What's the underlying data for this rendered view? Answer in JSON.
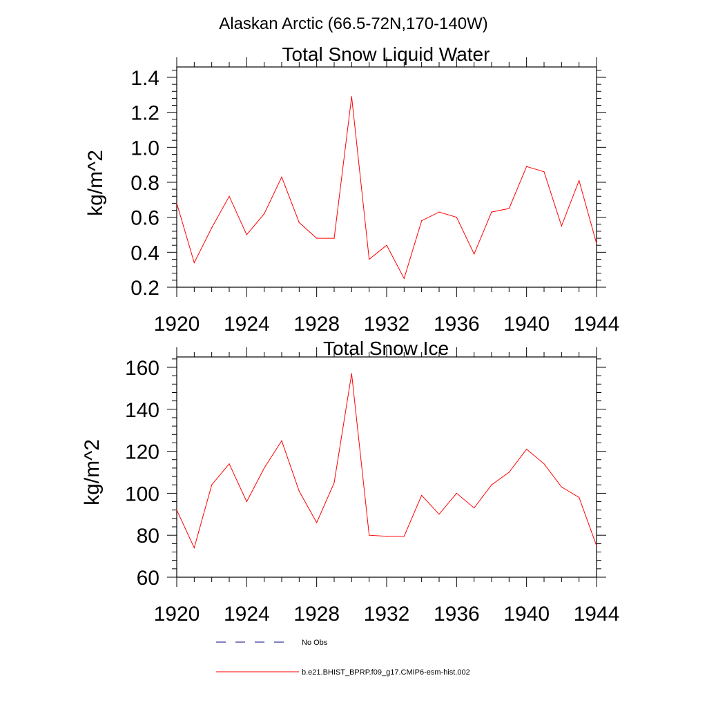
{
  "figure": {
    "title": "Alaskan Arctic (66.5-72N,170-140W)"
  },
  "chart_data": [
    {
      "type": "line",
      "title": "Total Snow Liquid Water",
      "xlabel": "",
      "ylabel": "kg/m^2",
      "xlim": [
        1920,
        1944
      ],
      "ylim": [
        0.2,
        1.4
      ],
      "x_ticks": [
        "1920",
        "1924",
        "1928",
        "1932",
        "1936",
        "1940",
        "1944"
      ],
      "y_ticks": [
        "0.2",
        "0.4",
        "0.6",
        "0.8",
        "1.0",
        "1.2",
        "1.4"
      ],
      "grid": false,
      "series": [
        {
          "name": "b.e21.BHIST_BPRP.f09_g17.CMIP6-esm-hist.002",
          "color": "#ff0000",
          "x": [
            1920,
            1921,
            1922,
            1923,
            1924,
            1925,
            1926,
            1927,
            1928,
            1929,
            1930,
            1931,
            1932,
            1933,
            1934,
            1935,
            1936,
            1937,
            1938,
            1939,
            1940,
            1941,
            1942,
            1943,
            1944
          ],
          "values": [
            0.68,
            0.34,
            0.54,
            0.72,
            0.5,
            0.62,
            0.83,
            0.57,
            0.48,
            0.48,
            1.29,
            0.36,
            0.44,
            0.25,
            0.58,
            0.63,
            0.6,
            0.39,
            0.63,
            0.65,
            0.89,
            0.86,
            0.55,
            0.81,
            0.45
          ]
        }
      ]
    },
    {
      "type": "line",
      "title": "Total Snow Ice",
      "xlabel": "",
      "ylabel": "kg/m^2",
      "xlim": [
        1920,
        1944
      ],
      "ylim": [
        60,
        160
      ],
      "x_ticks": [
        "1920",
        "1924",
        "1928",
        "1932",
        "1936",
        "1940",
        "1944"
      ],
      "y_ticks": [
        "60",
        "80",
        "100",
        "120",
        "140",
        "160"
      ],
      "grid": false,
      "series": [
        {
          "name": "b.e21.BHIST_BPRP.f09_g17.CMIP6-esm-hist.002",
          "color": "#ff0000",
          "x": [
            1920,
            1921,
            1922,
            1923,
            1924,
            1925,
            1926,
            1927,
            1928,
            1929,
            1930,
            1931,
            1932,
            1933,
            1934,
            1935,
            1936,
            1937,
            1938,
            1939,
            1940,
            1941,
            1942,
            1943,
            1944
          ],
          "values": [
            92,
            74,
            104,
            114,
            96,
            112,
            125,
            101,
            86,
            105,
            157,
            80,
            79.5,
            79.5,
            99,
            90,
            100,
            93,
            104,
            110,
            121,
            114,
            103,
            98,
            75
          ]
        }
      ]
    }
  ],
  "legend": {
    "placement": "bottom",
    "items": [
      {
        "label": "No Obs",
        "style": "dashed",
        "color": "#000080"
      },
      {
        "label": "b.e21.BHIST_BPRP.f09_g17.CMIP6-esm-hist.002",
        "style": "solid",
        "color": "#ff0000"
      }
    ]
  }
}
